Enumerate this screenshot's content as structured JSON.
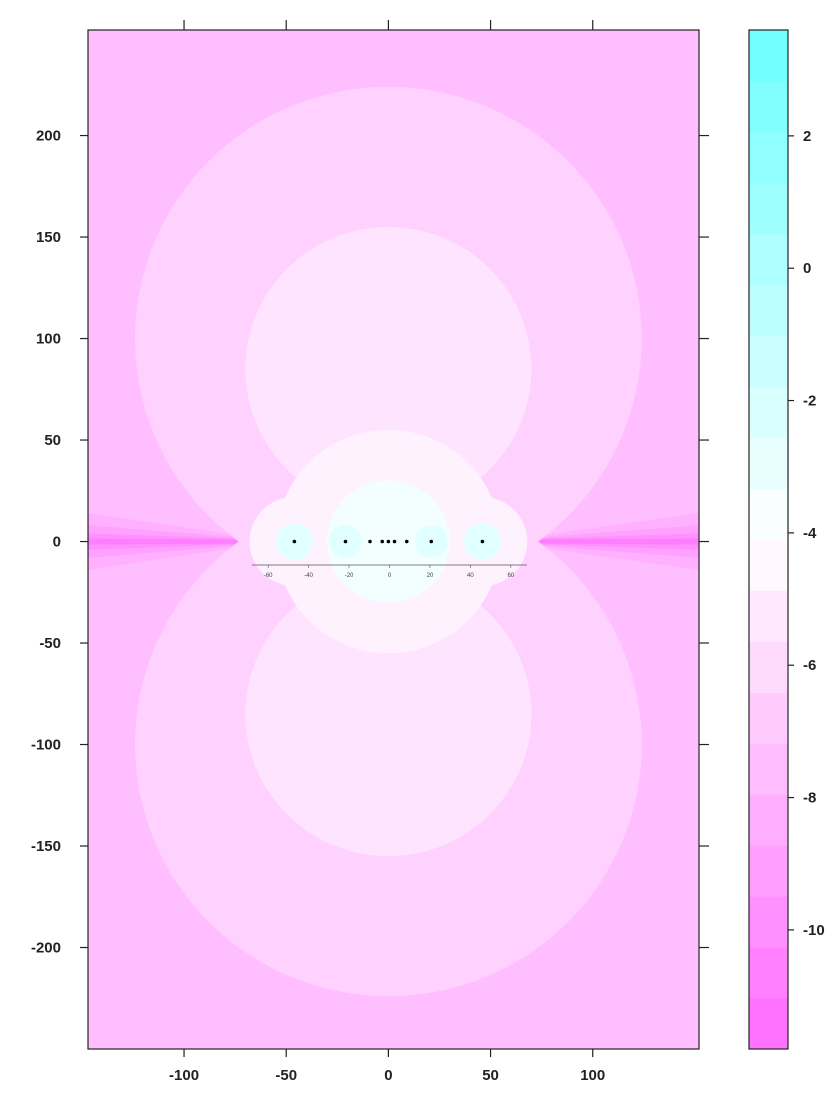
{
  "chart_data": {
    "type": "heatmap",
    "title": "",
    "xlabel": "",
    "ylabel": "",
    "xlim": [
      -147,
      152
    ],
    "ylim": [
      -250,
      252
    ],
    "x_ticks": [
      -100,
      -50,
      0,
      50,
      100
    ],
    "y_ticks": [
      200,
      150,
      100,
      50,
      0,
      -50,
      -100,
      -150,
      -200
    ],
    "sources": [
      {
        "x": -46,
        "y": 0
      },
      {
        "x": -21,
        "y": 0
      },
      {
        "x": -9,
        "y": 0
      },
      {
        "x": -3,
        "y": 0
      },
      {
        "x": 0,
        "y": 0
      },
      {
        "x": 3,
        "y": 0
      },
      {
        "x": 9,
        "y": 0
      },
      {
        "x": 21,
        "y": 0
      },
      {
        "x": 46,
        "y": 0
      }
    ],
    "contour_regions": [
      {
        "shape": "lobes",
        "center_y": 100,
        "radius": 124,
        "level": -6.5
      },
      {
        "shape": "lobes",
        "center_y": 85,
        "radius": 70,
        "level": -5.5
      },
      {
        "shape": "circle",
        "center_x": 0,
        "radius": 55,
        "level": -4.8
      },
      {
        "shape": "circle",
        "center_x": -46,
        "radius": 22,
        "level": -4.8
      },
      {
        "shape": "circle",
        "center_x": 46,
        "radius": 22,
        "level": -4.8
      },
      {
        "shape": "circle",
        "center_x": 0,
        "radius": 30,
        "level": -3.5
      },
      {
        "shape": "circle",
        "center_x": -46,
        "radius": 9,
        "level": -2.5
      },
      {
        "shape": "circle",
        "center_x": -21,
        "radius": 8,
        "level": -2.5
      },
      {
        "shape": "circle",
        "center_x": 21,
        "radius": 8,
        "level": -2.5
      },
      {
        "shape": "circle",
        "center_x": 46,
        "radius": 9,
        "level": -2.5
      }
    ],
    "background_level": -7.5,
    "colorbar": {
      "zlim": [
        -11.8,
        3.6
      ],
      "ticks": [
        2,
        0,
        -2,
        -4,
        -6,
        -8,
        -10
      ],
      "tick_labels": [
        "2",
        "0",
        "-2",
        "-4",
        "-6",
        "-8",
        "-10"
      ],
      "color_low": "#ff6bff",
      "color_high": "#6bffff",
      "color_mid": "#ffffff",
      "levels": 20
    },
    "inset_axis": {
      "xlim": [
        -68,
        68
      ],
      "ticks": [
        -60,
        -40,
        -20,
        0,
        20,
        40,
        60
      ]
    }
  }
}
